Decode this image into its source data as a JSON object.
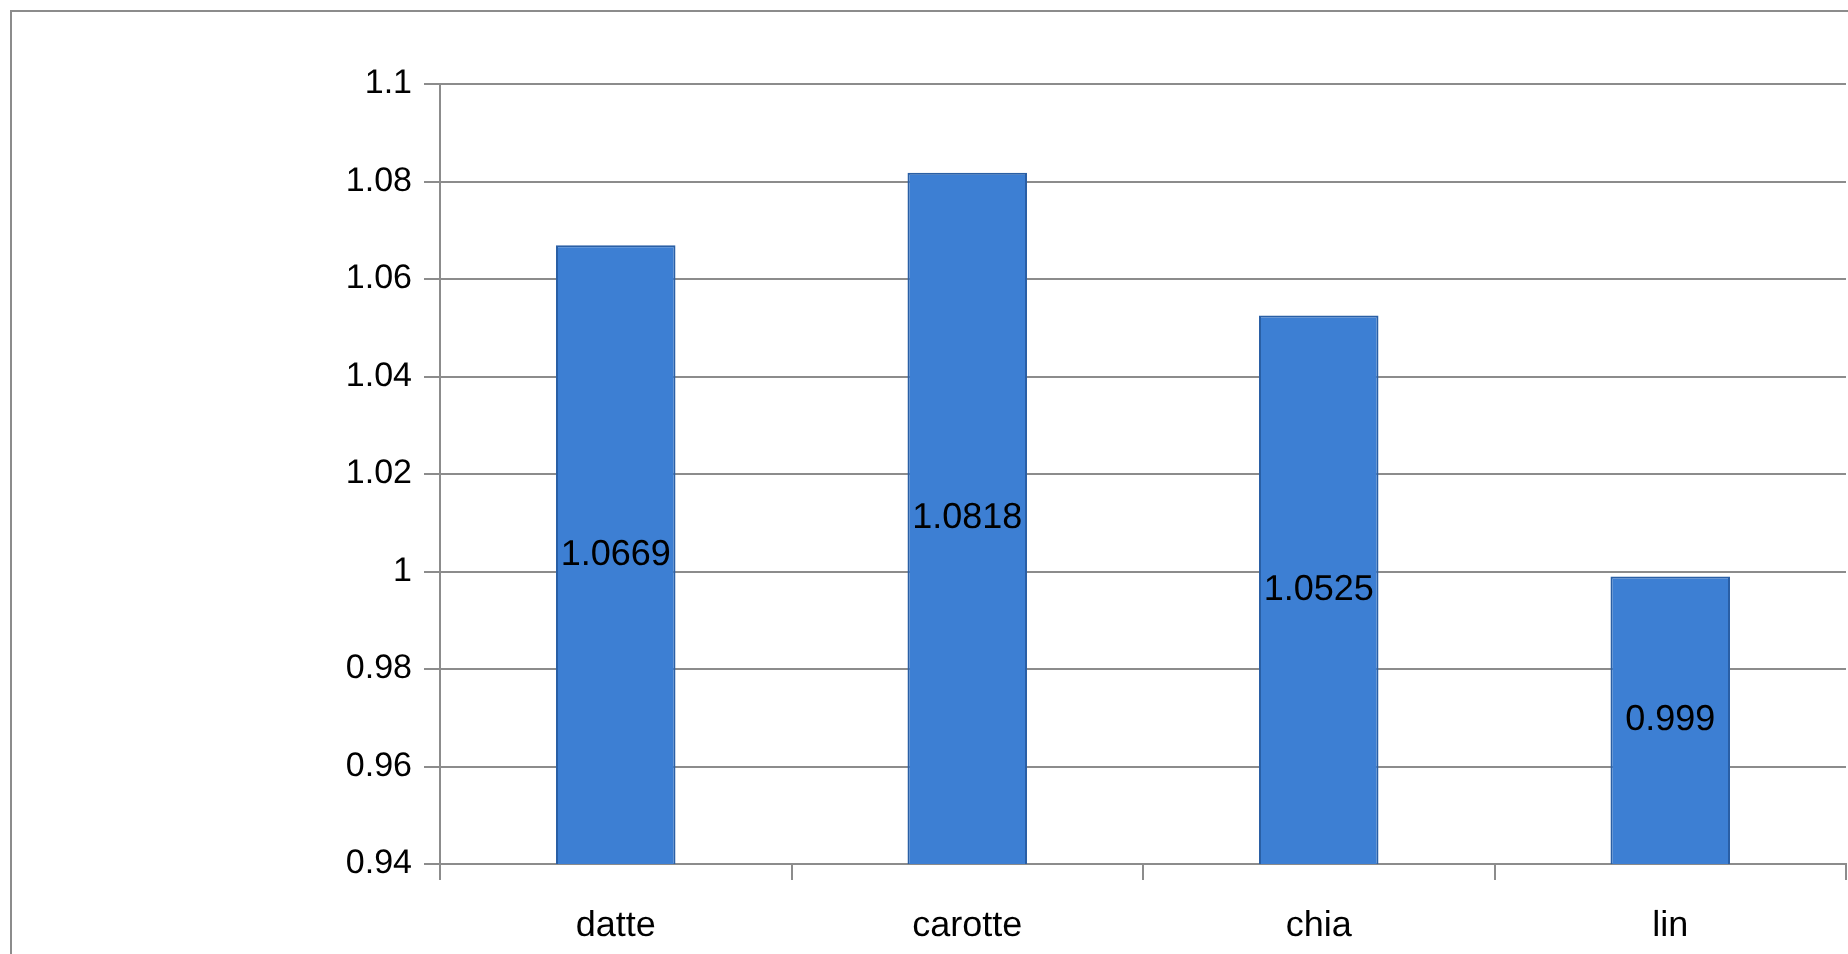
{
  "chart_data": {
    "type": "bar",
    "categories": [
      "datte",
      "carotte",
      "chia",
      "lin"
    ],
    "values": [
      1.0669,
      1.0818,
      1.0525,
      0.999
    ],
    "color": "#3d7fd3",
    "ylim": [
      0.94,
      1.1
    ],
    "yticks": [
      0.94,
      0.96,
      0.98,
      1,
      1.02,
      1.04,
      1.06,
      1.08,
      1.1
    ],
    "grid": "y",
    "legend": false,
    "data_labels": true
  }
}
